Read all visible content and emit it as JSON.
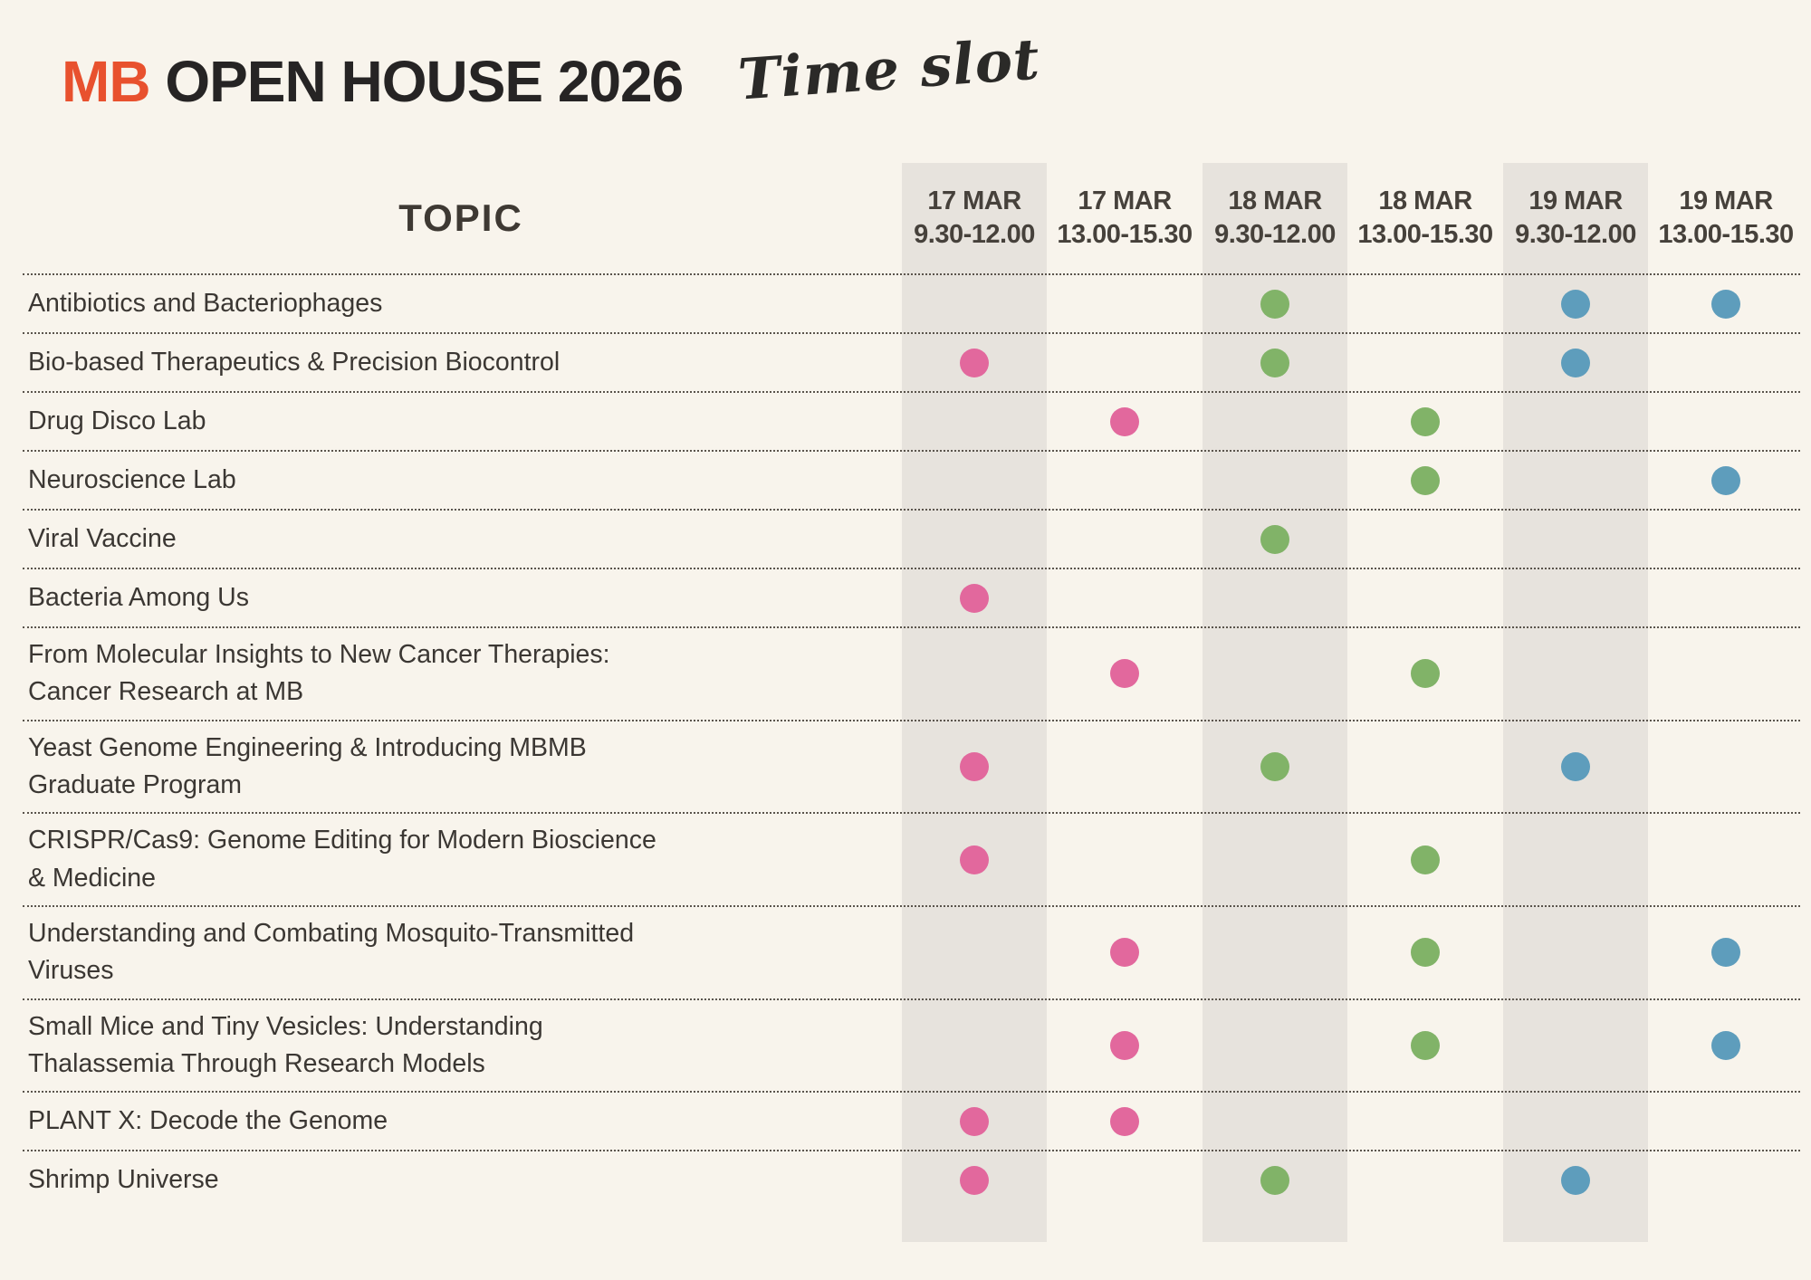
{
  "header": {
    "title_accent": "MB",
    "title_rest": " OPEN HOUSE 2026",
    "subtitle_script": "Time slot"
  },
  "colors": {
    "accent_orange": "#E8512E",
    "dot_pink": "#E2689D",
    "dot_green": "#81B368",
    "dot_blue": "#5E9DBC",
    "band_gray": "#E7E3DD",
    "background_cream": "#F8F4EC",
    "title_dark": "#262424",
    "body_text": "#3B3733"
  },
  "table": {
    "topic_header": "TOPIC",
    "columns": [
      {
        "date": "17 MAR",
        "time": "9.30-12.00",
        "shaded": true
      },
      {
        "date": "17 MAR",
        "time": "13.00-15.30",
        "shaded": false
      },
      {
        "date": "18 MAR",
        "time": "9.30-12.00",
        "shaded": true
      },
      {
        "date": "18 MAR",
        "time": "13.00-15.30",
        "shaded": false
      },
      {
        "date": "19 MAR",
        "time": "9.30-12.00",
        "shaded": true
      },
      {
        "date": "19 MAR",
        "time": "13.00-15.30",
        "shaded": false
      }
    ],
    "rows": [
      {
        "topic": "Antibiotics and Bacteriophages",
        "slots": [
          null,
          null,
          "dot_green",
          null,
          "dot_blue",
          "dot_blue"
        ]
      },
      {
        "topic": "Bio-based Therapeutics & Precision Biocontrol",
        "slots": [
          "dot_pink",
          null,
          "dot_green",
          null,
          "dot_blue",
          null
        ]
      },
      {
        "topic": "Drug Disco Lab",
        "slots": [
          null,
          "dot_pink",
          null,
          "dot_green",
          null,
          null
        ]
      },
      {
        "topic": "Neuroscience Lab",
        "slots": [
          null,
          null,
          null,
          "dot_green",
          null,
          "dot_blue"
        ]
      },
      {
        "topic": "Viral Vaccine",
        "slots": [
          null,
          null,
          "dot_green",
          null,
          null,
          null
        ]
      },
      {
        "topic": "Bacteria Among Us",
        "slots": [
          "dot_pink",
          null,
          null,
          null,
          null,
          null
        ]
      },
      {
        "topic": "From Molecular Insights to New Cancer Therapies: Cancer Research at MB",
        "slots": [
          null,
          "dot_pink",
          null,
          "dot_green",
          null,
          null
        ]
      },
      {
        "topic": "Yeast Genome Engineering & Introducing MBMB Graduate Program",
        "slots": [
          "dot_pink",
          null,
          "dot_green",
          null,
          "dot_blue",
          null
        ]
      },
      {
        "topic": "CRISPR/Cas9: Genome Editing for Modern Bioscience & Medicine",
        "slots": [
          "dot_pink",
          null,
          null,
          "dot_green",
          null,
          null
        ]
      },
      {
        "topic": "Understanding and Combating Mosquito-Transmitted Viruses",
        "slots": [
          null,
          "dot_pink",
          null,
          "dot_green",
          null,
          "dot_blue"
        ]
      },
      {
        "topic": "Small Mice and Tiny Vesicles: Understanding Thalassemia Through Research Models",
        "slots": [
          null,
          "dot_pink",
          null,
          "dot_green",
          null,
          "dot_blue"
        ]
      },
      {
        "topic": "PLANT X: Decode the Genome",
        "slots": [
          "dot_pink",
          "dot_pink",
          null,
          null,
          null,
          null
        ]
      },
      {
        "topic": "Shrimp Universe",
        "slots": [
          "dot_pink",
          null,
          "dot_green",
          null,
          "dot_blue",
          null
        ]
      }
    ]
  }
}
